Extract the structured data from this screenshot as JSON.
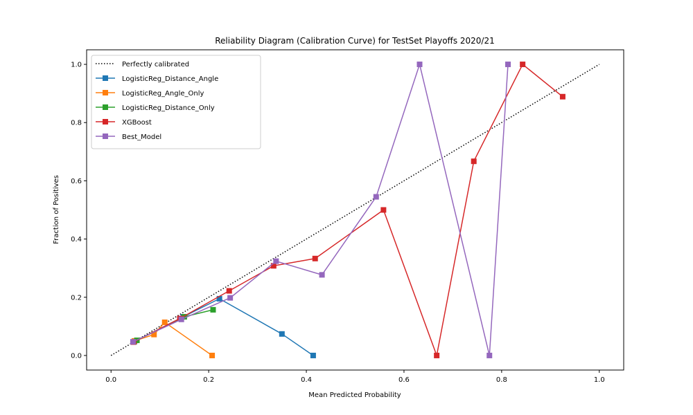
{
  "chart_data": {
    "type": "line",
    "title": "Reliability Diagram (Calibration Curve) for TestSet Playoffs 2020/21",
    "xlabel": "Mean Predicted Probability",
    "ylabel": "Fraction of Positives",
    "xlim": [
      -0.05,
      1.05
    ],
    "ylim": [
      -0.05,
      1.05
    ],
    "xticks": [
      "0.0",
      "0.2",
      "0.4",
      "0.6",
      "0.8",
      "1.0"
    ],
    "yticks": [
      "0.0",
      "0.2",
      "0.4",
      "0.6",
      "0.8",
      "1.0"
    ],
    "grid": false,
    "legend_position": "upper-left",
    "reference_line": {
      "name": "Perfectly calibrated",
      "x": [
        0,
        1
      ],
      "y": [
        0,
        1
      ],
      "color": "#000000",
      "style": "dotted"
    },
    "series": [
      {
        "name": "LogisticReg_Distance_Angle",
        "color": "#1f77b4",
        "marker": "square",
        "x": [
          0.048,
          0.148,
          0.222,
          0.35,
          0.414
        ],
        "y": [
          0.048,
          0.133,
          0.195,
          0.074,
          0.0
        ]
      },
      {
        "name": "LogisticReg_Angle_Only",
        "color": "#ff7f0e",
        "marker": "square",
        "x": [
          0.048,
          0.088,
          0.11,
          0.207
        ],
        "y": [
          0.05,
          0.072,
          0.114,
          0.0
        ]
      },
      {
        "name": "LogisticReg_Distance_Only",
        "color": "#2ca02c",
        "marker": "square",
        "x": [
          0.053,
          0.15,
          0.209
        ],
        "y": [
          0.052,
          0.133,
          0.157
        ]
      },
      {
        "name": "XGBoost",
        "color": "#d62728",
        "marker": "square",
        "x": [
          0.046,
          0.141,
          0.242,
          0.333,
          0.418,
          0.558,
          0.667,
          0.743,
          0.843,
          0.925
        ],
        "y": [
          0.046,
          0.127,
          0.222,
          0.308,
          0.333,
          0.5,
          0.0,
          0.667,
          1.0,
          0.889
        ],
        "note": "first point at x 0.046"
      },
      {
        "name": "Best_Model",
        "color": "#9467bd",
        "marker": "square",
        "x": [
          0.045,
          0.144,
          0.244,
          0.338,
          0.432,
          0.543,
          0.632,
          0.775,
          0.813
        ],
        "y": [
          0.047,
          0.124,
          0.198,
          0.324,
          0.277,
          0.545,
          1.0,
          0.0,
          1.0
        ]
      }
    ]
  }
}
